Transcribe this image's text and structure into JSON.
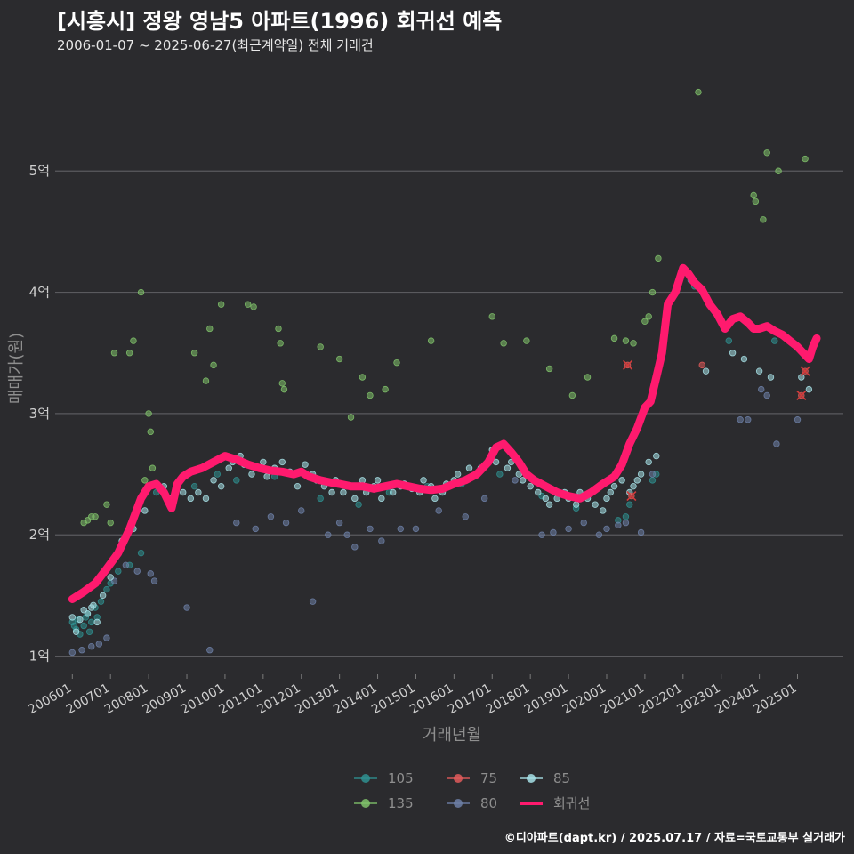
{
  "title": "[시흥시] 정왕 영남5 아파트(1996) 회귀선 예측",
  "subtitle": "2006-01-07 ~ 2025-06-27(최근계약일) 전체 거래건",
  "footer": "©디아파트(dapt.kr) / 2025.07.17 / 자료=국토교통부 실거래가",
  "colors": {
    "background": "#2b2b2e",
    "grid": "#5a5a5e",
    "regression": "#ff1a6e",
    "105": "#2f8f8f",
    "75": "#e05a5a",
    "85": "#a6e0e6",
    "135": "#7fc16a",
    "80": "#6d7fa6"
  },
  "legend": {
    "items": [
      {
        "label": "105",
        "color_key": "105"
      },
      {
        "label": "75",
        "color_key": "75"
      },
      {
        "label": "85",
        "color_key": "85"
      },
      {
        "label": "135",
        "color_key": "135"
      },
      {
        "label": "80",
        "color_key": "80"
      },
      {
        "label": "회귀선",
        "color_key": "regression"
      }
    ]
  },
  "chart_data": {
    "type": "scatter",
    "xlabel": "거래년월",
    "ylabel": "매매가(원)",
    "x_ticks": [
      "200601",
      "200701",
      "200801",
      "200901",
      "201001",
      "201101",
      "201201",
      "201301",
      "201401",
      "201501",
      "201601",
      "201701",
      "201801",
      "201901",
      "202001",
      "202101",
      "202201",
      "202301",
      "202401",
      "202501"
    ],
    "y_ticks": [
      "1억",
      "2억",
      "3억",
      "4억",
      "5억"
    ],
    "y_tick_values": [
      1,
      2,
      3,
      4,
      5
    ],
    "ylim": [
      0.85,
      5.75
    ],
    "xlim": [
      2005.55,
      2026.2
    ],
    "y_unit": "억",
    "grid": true,
    "legend_position": "bottom",
    "regression": {
      "name": "회귀선",
      "x": [
        2006.0,
        2006.3,
        2006.6,
        2006.9,
        2007.2,
        2007.5,
        2007.8,
        2008.0,
        2008.2,
        2008.4,
        2008.6,
        2008.75,
        2008.9,
        2009.1,
        2009.4,
        2009.7,
        2010.0,
        2010.3,
        2010.6,
        2010.9,
        2011.2,
        2011.5,
        2011.8,
        2012.0,
        2012.2,
        2012.5,
        2012.8,
        2013.0,
        2013.3,
        2013.6,
        2013.9,
        2014.2,
        2014.5,
        2014.8,
        2015.1,
        2015.4,
        2015.7,
        2016.0,
        2016.3,
        2016.6,
        2016.9,
        2017.1,
        2017.3,
        2017.5,
        2017.7,
        2017.9,
        2018.1,
        2018.4,
        2018.7,
        2019.0,
        2019.3,
        2019.6,
        2019.9,
        2020.2,
        2020.4,
        2020.6,
        2020.8,
        2021.0,
        2021.15,
        2021.3,
        2021.45,
        2021.6,
        2021.8,
        2022.0,
        2022.15,
        2022.3,
        2022.5,
        2022.7,
        2022.9,
        2023.1,
        2023.3,
        2023.5,
        2023.7,
        2023.85,
        2024.0,
        2024.2,
        2024.4,
        2024.6,
        2024.8,
        2025.0,
        2025.15,
        2025.3,
        2025.4,
        2025.5
      ],
      "y": [
        1.47,
        1.53,
        1.6,
        1.72,
        1.85,
        2.05,
        2.3,
        2.4,
        2.42,
        2.35,
        2.22,
        2.42,
        2.48,
        2.52,
        2.55,
        2.6,
        2.65,
        2.62,
        2.58,
        2.55,
        2.53,
        2.52,
        2.5,
        2.52,
        2.48,
        2.45,
        2.43,
        2.42,
        2.4,
        2.4,
        2.38,
        2.4,
        2.42,
        2.4,
        2.38,
        2.37,
        2.38,
        2.42,
        2.45,
        2.5,
        2.6,
        2.72,
        2.75,
        2.68,
        2.6,
        2.5,
        2.45,
        2.4,
        2.35,
        2.32,
        2.3,
        2.35,
        2.42,
        2.48,
        2.58,
        2.75,
        2.88,
        3.05,
        3.1,
        3.3,
        3.5,
        3.9,
        4.0,
        4.2,
        4.15,
        4.08,
        4.02,
        3.9,
        3.82,
        3.7,
        3.78,
        3.8,
        3.75,
        3.7,
        3.7,
        3.72,
        3.68,
        3.65,
        3.6,
        3.55,
        3.5,
        3.45,
        3.55,
        3.62
      ]
    },
    "series": [
      {
        "name": "105",
        "x": [
          2006.0,
          2006.05,
          2006.1,
          2006.15,
          2006.2,
          2006.3,
          2006.35,
          2006.4,
          2006.45,
          2006.5,
          2006.6,
          2006.65,
          2006.75,
          2006.9,
          2007.0,
          2007.2,
          2007.5,
          2007.8,
          2008.2,
          2009.2,
          2009.8,
          2010.3,
          2010.9,
          2011.3,
          2012.5,
          2013.5,
          2014.3,
          2015.3,
          2016.2,
          2017.2,
          2018.3,
          2019.2,
          2020.3,
          2020.5,
          2020.6,
          2021.2,
          2021.3,
          2022.3,
          2023.2,
          2024.4
        ],
        "y": [
          1.28,
          1.25,
          1.22,
          1.3,
          1.18,
          1.25,
          1.32,
          1.35,
          1.2,
          1.28,
          1.4,
          1.32,
          1.45,
          1.55,
          1.6,
          1.7,
          1.75,
          1.85,
          2.35,
          2.4,
          2.5,
          2.45,
          2.55,
          2.48,
          2.3,
          2.25,
          2.35,
          2.4,
          2.42,
          2.5,
          2.32,
          2.22,
          2.12,
          2.15,
          2.25,
          2.45,
          2.5,
          4.05,
          3.6,
          3.6
        ]
      },
      {
        "name": "135",
        "x": [
          2006.3,
          2006.4,
          2006.5,
          2006.6,
          2006.9,
          2007.0,
          2007.1,
          2007.5,
          2007.6,
          2007.8,
          2007.9,
          2008.0,
          2008.05,
          2008.1,
          2009.2,
          2009.5,
          2009.6,
          2009.7,
          2009.9,
          2010.6,
          2010.75,
          2011.4,
          2011.45,
          2011.5,
          2011.55,
          2012.5,
          2013.0,
          2013.3,
          2013.6,
          2013.8,
          2014.2,
          2014.5,
          2015.4,
          2017.0,
          2017.3,
          2017.9,
          2018.5,
          2019.1,
          2019.5,
          2020.2,
          2020.5,
          2020.7,
          2021.0,
          2021.1,
          2021.2,
          2021.35,
          2022.4,
          2023.85,
          2023.9,
          2024.1,
          2024.2,
          2024.5,
          2025.2
        ],
        "y": [
          2.1,
          2.12,
          2.15,
          2.15,
          2.25,
          2.1,
          3.5,
          3.5,
          3.6,
          4.0,
          2.45,
          3.0,
          2.85,
          2.55,
          3.5,
          3.27,
          3.7,
          3.4,
          3.9,
          3.9,
          3.88,
          3.7,
          3.58,
          3.25,
          3.2,
          3.55,
          3.45,
          2.97,
          3.3,
          3.15,
          3.2,
          3.42,
          3.6,
          3.8,
          3.58,
          3.6,
          3.37,
          3.15,
          3.3,
          3.62,
          3.6,
          3.58,
          3.76,
          3.8,
          4.0,
          4.28,
          5.65,
          4.8,
          4.75,
          4.6,
          5.15,
          5.0,
          5.1
        ]
      },
      {
        "name": "80",
        "x": [
          2006.0,
          2006.25,
          2006.5,
          2006.7,
          2006.9,
          2007.1,
          2007.4,
          2007.7,
          2008.05,
          2008.15,
          2009.0,
          2009.6,
          2010.3,
          2010.8,
          2011.2,
          2011.6,
          2012.0,
          2012.3,
          2012.7,
          2013.0,
          2013.2,
          2013.4,
          2013.8,
          2014.1,
          2014.6,
          2015.0,
          2015.6,
          2016.3,
          2016.8,
          2017.6,
          2018.3,
          2018.6,
          2019.0,
          2019.4,
          2019.8,
          2020.0,
          2020.3,
          2020.5,
          2020.9,
          2021.2,
          2022.2,
          2023.5,
          2023.7,
          2024.05,
          2024.2,
          2024.45,
          2025.0
        ],
        "y": [
          1.03,
          1.05,
          1.08,
          1.1,
          1.15,
          1.62,
          1.75,
          1.7,
          1.68,
          1.62,
          1.4,
          1.05,
          2.1,
          2.05,
          2.15,
          2.1,
          2.2,
          1.45,
          2.0,
          2.1,
          2.0,
          1.9,
          2.05,
          1.95,
          2.05,
          2.05,
          2.2,
          2.15,
          2.3,
          2.45,
          2.0,
          2.02,
          2.05,
          2.1,
          2.0,
          2.05,
          2.08,
          2.1,
          2.02,
          2.5,
          4.1,
          2.95,
          2.95,
          3.2,
          3.15,
          2.75,
          2.95
        ]
      },
      {
        "name": "85",
        "x": [
          2006.0,
          2006.1,
          2006.2,
          2006.3,
          2006.4,
          2006.5,
          2006.55,
          2006.65,
          2006.8,
          2007.0,
          2007.1,
          2007.3,
          2007.6,
          2007.9,
          2008.4,
          2008.6,
          2008.9,
          2009.1,
          2009.3,
          2009.5,
          2009.7,
          2009.9,
          2010.1,
          2010.2,
          2010.4,
          2010.5,
          2010.7,
          2010.9,
          2011.0,
          2011.1,
          2011.3,
          2011.5,
          2011.7,
          2011.9,
          2012.1,
          2012.3,
          2012.4,
          2012.6,
          2012.8,
          2012.9,
          2013.1,
          2013.2,
          2013.4,
          2013.6,
          2013.7,
          2013.9,
          2014.0,
          2014.1,
          2014.3,
          2014.4,
          2014.6,
          2014.7,
          2014.9,
          2015.1,
          2015.2,
          2015.4,
          2015.5,
          2015.7,
          2015.8,
          2016.0,
          2016.1,
          2016.4,
          2016.5,
          2016.7,
          2016.9,
          2017.0,
          2017.1,
          2017.4,
          2017.5,
          2017.7,
          2017.8,
          2018.0,
          2018.2,
          2018.4,
          2018.5,
          2018.7,
          2018.9,
          2019.0,
          2019.2,
          2019.3,
          2019.5,
          2019.7,
          2019.9,
          2020.0,
          2020.1,
          2020.2,
          2020.4,
          2020.6,
          2020.7,
          2020.8,
          2020.9,
          2021.1,
          2021.3,
          2022.6,
          2023.3,
          2023.6,
          2024.0,
          2024.3,
          2025.1,
          2025.3
        ],
        "y": [
          1.32,
          1.2,
          1.3,
          1.38,
          1.35,
          1.4,
          1.42,
          1.28,
          1.5,
          1.65,
          1.8,
          1.95,
          2.05,
          2.2,
          2.4,
          2.3,
          2.35,
          2.3,
          2.35,
          2.3,
          2.45,
          2.4,
          2.55,
          2.6,
          2.65,
          2.58,
          2.5,
          2.55,
          2.6,
          2.48,
          2.55,
          2.6,
          2.52,
          2.4,
          2.58,
          2.5,
          2.45,
          2.4,
          2.35,
          2.45,
          2.35,
          2.4,
          2.3,
          2.45,
          2.35,
          2.4,
          2.45,
          2.3,
          2.4,
          2.35,
          2.4,
          2.42,
          2.38,
          2.35,
          2.45,
          2.4,
          2.3,
          2.35,
          2.42,
          2.45,
          2.5,
          2.55,
          2.48,
          2.55,
          2.6,
          2.7,
          2.6,
          2.55,
          2.6,
          2.5,
          2.45,
          2.4,
          2.35,
          2.3,
          2.25,
          2.3,
          2.35,
          2.3,
          2.25,
          2.35,
          2.3,
          2.25,
          2.2,
          2.3,
          2.35,
          2.4,
          2.45,
          2.35,
          2.4,
          2.45,
          2.5,
          2.6,
          2.65,
          3.35,
          3.5,
          3.45,
          3.35,
          3.3,
          3.3,
          3.2
        ]
      },
      {
        "name": "75",
        "x": [
          2020.55,
          2020.65,
          2022.5,
          2025.2,
          2025.1
        ],
        "y": [
          3.4,
          2.32,
          3.4,
          3.35,
          3.15
        ]
      }
    ],
    "cancelled_markers": [
      {
        "series": "75",
        "x": 2020.55,
        "y": 3.4
      },
      {
        "series": "75",
        "x": 2020.65,
        "y": 2.32
      },
      {
        "series": "75",
        "x": 2025.1,
        "y": 3.15
      },
      {
        "series": "75",
        "x": 2025.2,
        "y": 3.35
      }
    ]
  }
}
